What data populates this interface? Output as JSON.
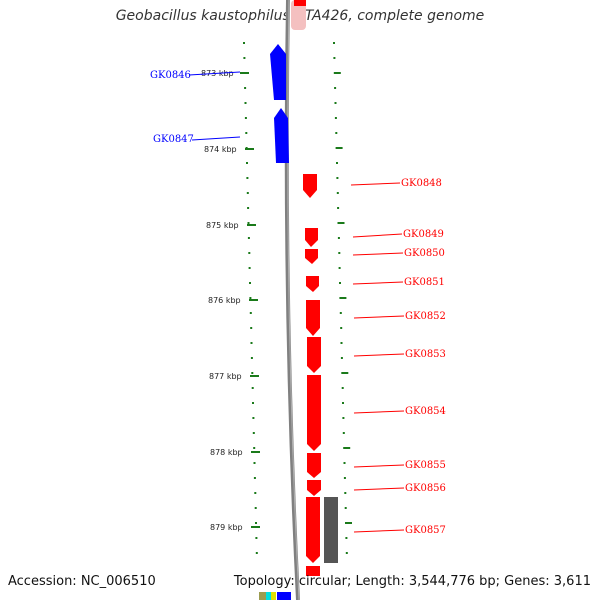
{
  "title": "Geobacillus kaustophilus HTA426, complete genome",
  "footer": {
    "accession": "Accession: NC_006510",
    "topology": "Topology: circular; Length: 3,544,776 bp; Genes: 3,611"
  },
  "colors": {
    "forward_gene": "#ff0000",
    "reverse_gene": "#0000ff",
    "other_feature": "#555555",
    "ticks": "#1a7a1a",
    "backbone": "#808080"
  },
  "kbp_ticks": [
    "873 kbp",
    "874 kbp",
    "875 kbp",
    "876 kbp",
    "877 kbp",
    "878 kbp",
    "879 kbp"
  ],
  "genes_reverse": [
    "GK0846",
    "GK0847"
  ],
  "genes_forward": [
    "GK0848",
    "GK0849",
    "GK0850",
    "GK0851",
    "GK0852",
    "GK0853",
    "GK0854",
    "GK0855",
    "GK0856",
    "GK0857"
  ]
}
